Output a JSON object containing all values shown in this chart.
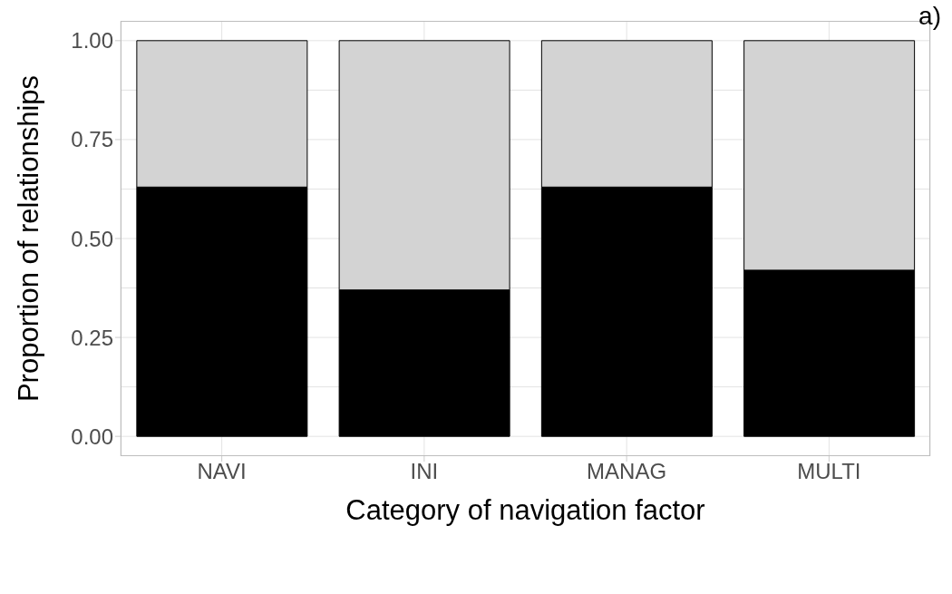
{
  "chart_data": {
    "type": "bar",
    "stacked": true,
    "xlabel": "Category of navigation factor",
    "ylabel": "Proportion of relationships",
    "annotations": [
      "a)"
    ],
    "categories": [
      "NAVI",
      "INI",
      "MANAG",
      "MULTI"
    ],
    "series": [
      {
        "color": "#000000",
        "values": [
          0.63,
          0.37,
          0.63,
          0.42
        ]
      },
      {
        "color": "#d3d3d3",
        "values": [
          0.37,
          0.63,
          0.37,
          0.58
        ]
      }
    ],
    "ylim": [
      -0.05,
      1.05
    ],
    "yticks": [
      {
        "value": 0,
        "label": "0.00"
      },
      {
        "value": 0.25,
        "label": "0.25"
      },
      {
        "value": 0.5,
        "label": "0.50"
      },
      {
        "value": 0.75,
        "label": "0.75"
      },
      {
        "value": 1,
        "label": "1.00"
      }
    ],
    "grid": true
  }
}
